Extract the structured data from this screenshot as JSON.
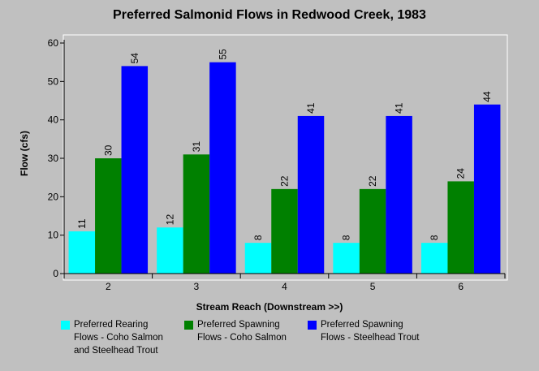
{
  "chart_data": {
    "type": "bar",
    "title": "Preferred Salmonid Flows in Redwood Creek, 1983",
    "xlabel": "Stream Reach (Downstream >>)",
    "ylabel": "Flow (cfs)",
    "ylim": [
      0,
      60
    ],
    "yticks": [
      0,
      10,
      20,
      30,
      40,
      50,
      60
    ],
    "grid": false,
    "legend_position": "bottom",
    "categories": [
      "2",
      "3",
      "4",
      "5",
      "6"
    ],
    "series": [
      {
        "name_lines": [
          "Preferred Rearing",
          "Flows - Coho Salmon",
          "and Steelhead Trout"
        ],
        "color": "#00ffff",
        "values": [
          11,
          12,
          8,
          8,
          8
        ]
      },
      {
        "name_lines": [
          "Preferred Spawning",
          "Flows - Coho Salmon"
        ],
        "color": "#008000",
        "values": [
          30,
          31,
          22,
          22,
          24
        ]
      },
      {
        "name_lines": [
          "Preferred Spawning",
          "Flows - Steelhead Trout"
        ],
        "color": "#0000ff",
        "values": [
          54,
          55,
          41,
          41,
          44
        ]
      }
    ]
  }
}
